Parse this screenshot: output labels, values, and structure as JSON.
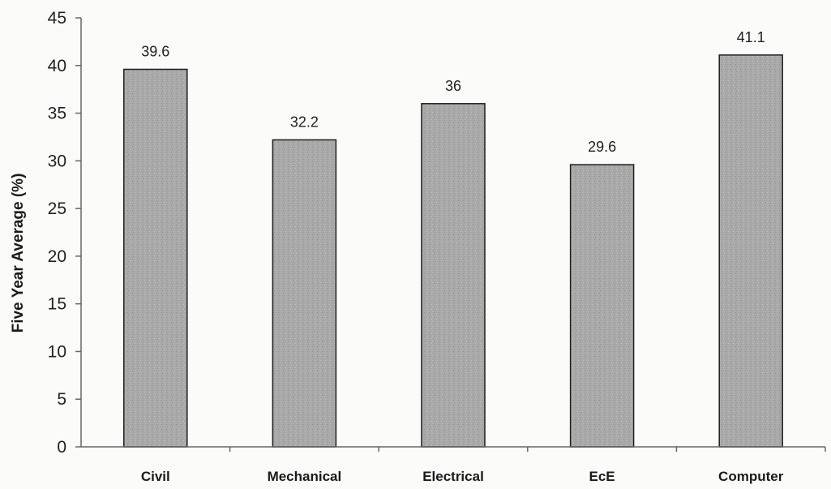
{
  "chart_data": {
    "type": "bar",
    "title": "",
    "xlabel": "",
    "ylabel": "Five Year Average (%)",
    "categories": [
      "Civil",
      "Mechanical",
      "Electrical",
      "EcE",
      "Computer"
    ],
    "values": [
      39.6,
      32.2,
      36,
      29.6,
      41.1
    ],
    "data_labels": [
      "39.6",
      "32.2",
      "36",
      "29.6",
      "41.1"
    ],
    "ylim": [
      0,
      45
    ],
    "yticks": [
      0,
      5,
      10,
      15,
      20,
      25,
      30,
      35,
      40,
      45
    ],
    "grid": false,
    "legend": "none",
    "bar_color": "#a8a8a8",
    "bar_edge_color": "#1e1e1e"
  }
}
